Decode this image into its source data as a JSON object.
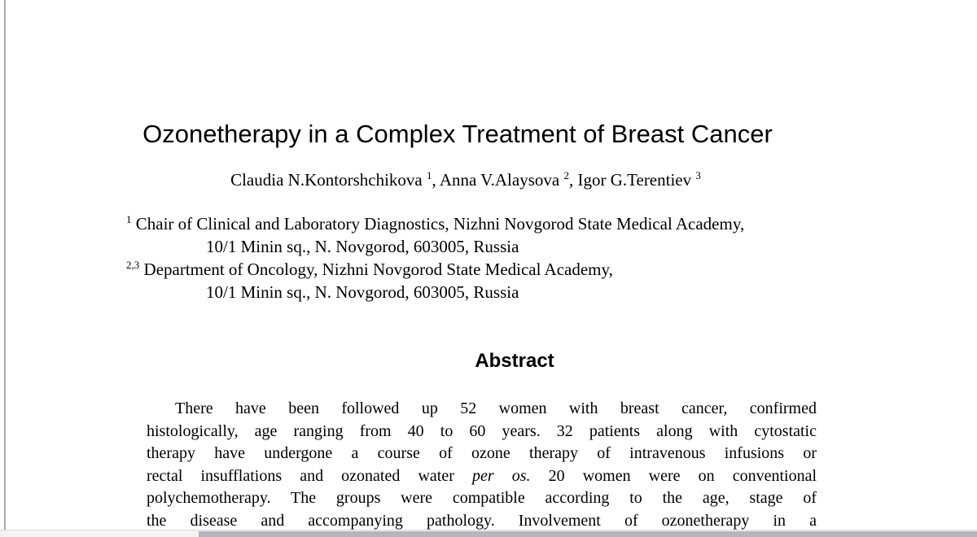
{
  "colors": {
    "page-bg": "#ffffff",
    "text": "#000000",
    "page-edge": "#a8a8a8",
    "scrollbar-track": "#f3f3f3",
    "scrollbar-border": "#d8d8d8",
    "scrollbar-thumb": "#b2b6bd"
  },
  "paper": {
    "title": "Ozonetherapy in a Complex Treatment of Breast Cancer",
    "authors_segments": [
      {
        "t": "Claudia N.Kontorshchikova "
      },
      {
        "t": "1",
        "sup": true
      },
      {
        "t": ", Anna V.Alaysova "
      },
      {
        "t": "2",
        "sup": true
      },
      {
        "t": ", Igor G.Terentiev "
      },
      {
        "t": "3",
        "sup": true
      }
    ],
    "affiliation_lines": [
      {
        "indent": false,
        "segments": [
          {
            "t": "1",
            "sup": true
          },
          {
            "t": " Chair of Clinical and Laboratory Diagnostics, Nizhni Novgorod State Medical Academy,"
          }
        ]
      },
      {
        "indent": true,
        "segments": [
          {
            "t": "10/1 Minin sq., N. Novgorod, 603005, Russia"
          }
        ]
      },
      {
        "indent": false,
        "segments": [
          {
            "t": "2,3",
            "sup": true
          },
          {
            "t": " Department of Oncology, Nizhni Novgorod State Medical Academy,"
          }
        ]
      },
      {
        "indent": true,
        "segments": [
          {
            "t": "10/1 Minin sq., N. Novgorod, 603005, Russia"
          }
        ]
      }
    ],
    "abstract": {
      "heading": "Abstract",
      "lines": [
        {
          "first": true,
          "segments": [
            {
              "t": "There have been followed up 52 women with breast cancer, confirmed"
            }
          ]
        },
        {
          "segments": [
            {
              "t": "histologically, age ranging from 40 to 60 years. 32 patients along with cytostatic"
            }
          ]
        },
        {
          "segments": [
            {
              "t": "therapy have undergone a course of ozone therapy of intravenous infusions or"
            }
          ]
        },
        {
          "segments": [
            {
              "t": "rectal insufflations and ozonated water "
            },
            {
              "t": "per os.",
              "i": true
            },
            {
              "t": " 20 women were on conventional"
            }
          ]
        },
        {
          "segments": [
            {
              "t": "polychemotherapy. The groups were compatible according to the age, stage of"
            }
          ]
        },
        {
          "segments": [
            {
              "t": "the disease and accompanying pathology. Involvement of ozonetherapy in a"
            }
          ]
        }
      ]
    }
  }
}
